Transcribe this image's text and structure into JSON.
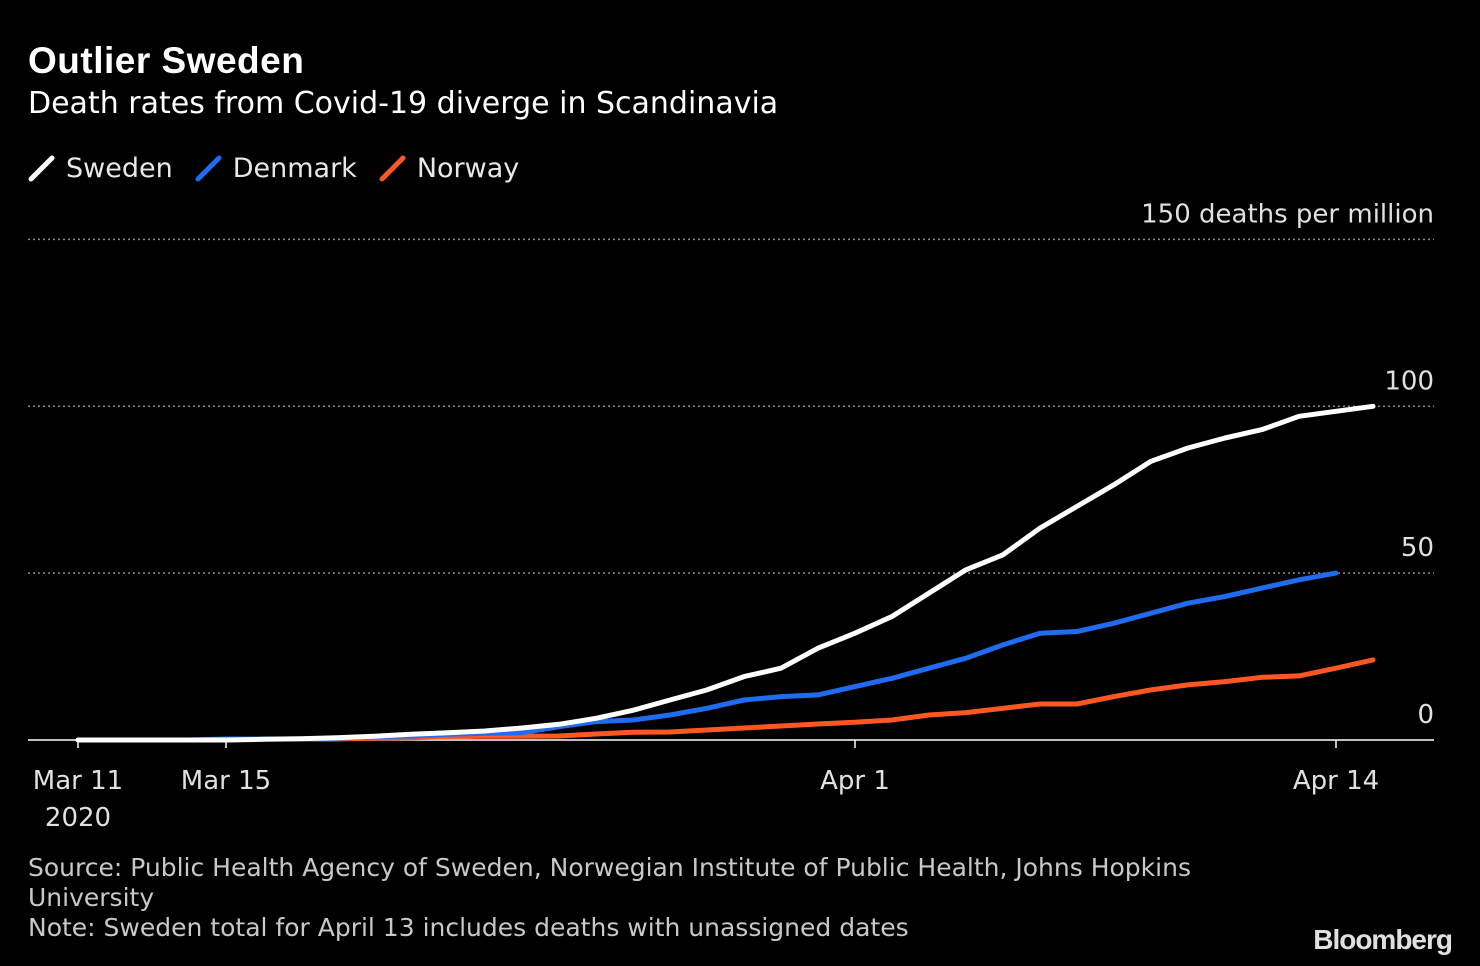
{
  "title": "Outlier Sweden",
  "subtitle": "Death rates from Covid-19 diverge in Scandinavia",
  "legend": [
    {
      "name": "Sweden",
      "color": "#ffffff"
    },
    {
      "name": "Denmark",
      "color": "#1f6cf0"
    },
    {
      "name": "Norway",
      "color": "#ff5722"
    }
  ],
  "source_line1": "Source: Public Health Agency of Sweden, Norwegian Institute of Public Health, Johns Hopkins",
  "source_line2": "University",
  "note": "Note: Sweden total for April 13 includes deaths with unassigned dates",
  "brand": "Bloomberg",
  "chart_data": {
    "type": "line",
    "ylabel": "150 deaths per million",
    "ylim": [
      0,
      150
    ],
    "yticks": [
      {
        "value": 150,
        "label": "150 deaths per million"
      },
      {
        "value": 100,
        "label": "100"
      },
      {
        "value": 50,
        "label": "50"
      },
      {
        "value": 0,
        "label": "0"
      }
    ],
    "xlim": [
      "2020-03-11",
      "2020-04-16"
    ],
    "xticks": [
      {
        "date": "2020-03-11",
        "label": "Mar 11",
        "sublabel": "2020"
      },
      {
        "date": "2020-03-15",
        "label": "Mar 15",
        "sublabel": ""
      },
      {
        "date": "2020-04-01",
        "label": "Apr 1",
        "sublabel": ""
      },
      {
        "date": "2020-04-14",
        "label": "Apr 14",
        "sublabel": ""
      }
    ],
    "grid": true,
    "series": [
      {
        "name": "Sweden",
        "color": "#ffffff",
        "start_date": "2020-03-11",
        "values": [
          0,
          0,
          0,
          0,
          0,
          0.2,
          0.4,
          0.7,
          1.1,
          1.7,
          2.2,
          2.7,
          3.6,
          4.7,
          6.5,
          8.9,
          12.0,
          15.0,
          19.0,
          21.5,
          27.5,
          32.0,
          37.0,
          44.0,
          51.0,
          55.5,
          63.5,
          70.0,
          76.5,
          83.5,
          87.5,
          90.5,
          93.0,
          97.0,
          98.5,
          100.0
        ]
      },
      {
        "name": "Denmark",
        "color": "#1f6cf0",
        "start_date": "2020-03-11",
        "values": [
          0,
          0,
          0,
          0,
          0.3,
          0.3,
          0.3,
          0.5,
          1.0,
          1.2,
          1.7,
          2.0,
          2.2,
          4.0,
          5.5,
          6.0,
          7.5,
          9.5,
          12.0,
          13.0,
          13.5,
          16.0,
          18.5,
          21.5,
          24.5,
          28.5,
          32.0,
          32.5,
          35.0,
          38.0,
          41.0,
          43.0,
          45.5,
          48.0,
          50.0
        ]
      },
      {
        "name": "Norway",
        "color": "#ff5722",
        "start_date": "2020-03-11",
        "values": [
          0,
          0,
          0,
          0,
          0,
          0.3,
          0.3,
          0.3,
          0.5,
          0.7,
          1.0,
          1.1,
          1.1,
          1.2,
          1.8,
          2.3,
          2.4,
          3.0,
          3.6,
          4.2,
          4.8,
          5.3,
          6.0,
          7.5,
          8.2,
          9.5,
          10.8,
          10.8,
          13.0,
          15.0,
          16.5,
          17.5,
          18.8,
          19.2,
          21.5,
          24.0
        ]
      }
    ]
  }
}
